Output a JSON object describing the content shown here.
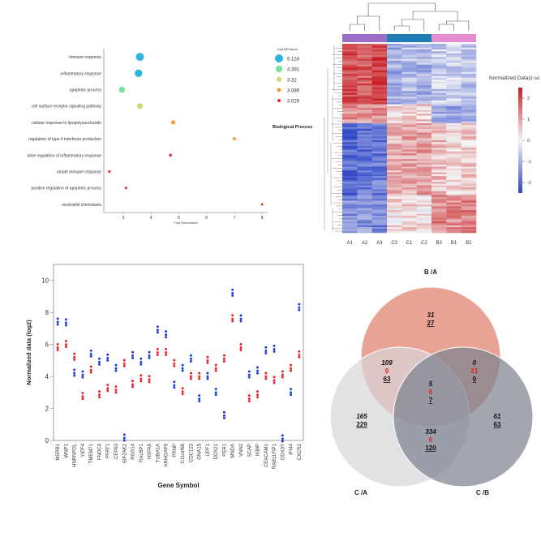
{
  "chart_data": [
    {
      "type": "scatter",
      "panel": "enrichment-bubble",
      "categories": [
        "immune response",
        "inflammatory response",
        "apoptotic process",
        "cell surface receptor signaling pathway",
        "cellular response to lipopolysaccharide",
        "regulation of type II interferon production",
        "ative regulation of inflammatory response",
        "innate immune response",
        "positive regulation of apoptotic process",
        "neutrophil chemotaxis"
      ],
      "x": [
        3.6,
        3.55,
        2.95,
        3.6,
        4.8,
        7.0,
        4.7,
        2.5,
        3.1,
        8.0
      ],
      "pvalue": [
        5.124,
        4.9,
        4.391,
        4.2,
        3.7,
        3.32,
        3.2,
        3.086,
        3.029,
        3.0
      ],
      "xlabel": "Fold Enrichment",
      "xticks": [
        "3",
        "4",
        "5",
        "6",
        "7",
        "8"
      ],
      "xlim": [
        2.3,
        8.2
      ],
      "legend_title": "-log10(Pvalue)",
      "legend": [
        "5.124",
        "4.391",
        "3.32",
        "3.086",
        "3.029"
      ],
      "legend_colors": [
        "#2bb5e0",
        "#7ddc9f",
        "#c7dc6e",
        "#f0a03c",
        "#e8302c"
      ],
      "side_label": "Biological Process"
    },
    {
      "type": "heatmap",
      "panel": "clustered-heatmap",
      "columns": [
        "A1",
        "A2",
        "A3",
        "C3",
        "C1",
        "C2",
        "B3",
        "B1",
        "B2"
      ],
      "group_colors": [
        "#9b6fc8",
        "#1f7cb4",
        "#e58bcf"
      ],
      "colorbar_title": "Normalized Data(z-sc",
      "colorbar_ticks": [
        "2",
        "1",
        "0",
        "-1",
        "-2"
      ],
      "clim": [
        -2.5,
        2.5
      ],
      "blocks": [
        {
          "rows": 32,
          "pattern": [
            2.0,
            1.8,
            2.1,
            -1.0,
            -0.8,
            -0.9,
            -0.6,
            -0.5,
            -0.7
          ]
        },
        {
          "rows": 10,
          "pattern": [
            1.2,
            1.0,
            1.3,
            0.4,
            0.6,
            0.5,
            -1.0,
            -1.1,
            -0.9
          ]
        },
        {
          "rows": 38,
          "pattern": [
            -2.0,
            -1.8,
            -1.7,
            0.8,
            0.9,
            1.0,
            0.6,
            0.4,
            0.5
          ]
        },
        {
          "rows": 20,
          "pattern": [
            -1.5,
            -1.3,
            -1.6,
            0.3,
            0.4,
            0.2,
            1.3,
            1.2,
            1.4
          ]
        }
      ]
    },
    {
      "type": "scatter",
      "panel": "gene-dot-plot",
      "ylabel": "Normalized data (log2)",
      "xlabel": "Gene Symbol",
      "ylim": [
        0,
        11
      ],
      "yticks": [
        0,
        2,
        4,
        6,
        8,
        10
      ],
      "categories": [
        "MSRB1",
        "WNP1",
        "HNRNPDL",
        "YIPF4",
        "TMEM71",
        "FNDC4",
        "PFAT1",
        "CEP63",
        "EIF2AK2",
        "RGS14",
        "RALBP1",
        "HSPA9",
        "TUBA1A",
        "ARHGAP9",
        "PRNP",
        "C11orf68",
        "CDC123",
        "GNA15",
        "UPF1",
        "DDX21",
        "PER1",
        "MNDA",
        "VNN2",
        "SCAP",
        "IKBIP",
        "CEACAM1",
        "RAB11FIP1",
        "DDX3Y",
        "IFI44",
        "CXCR2"
      ],
      "series": [
        {
          "color": "#1f3fd8",
          "values": [
            7.4,
            7.35,
            4.2,
            4.1,
            5.4,
            4.9,
            5.15,
            4.5,
            0.15,
            5.3,
            4.9,
            5.3,
            6.9,
            6.6,
            3.45,
            4.5,
            5.1,
            2.6,
            4.0,
            3.0,
            1.55,
            9.2,
            7.6,
            4.1,
            4.35,
            5.6,
            5.7,
            0.1,
            3.0,
            8.3
          ]
        },
        {
          "color": "#e8252a",
          "values": [
            5.8,
            6.0,
            5.2,
            2.75,
            4.4,
            2.85,
            3.25,
            3.15,
            4.8,
            3.5,
            3.85,
            3.8,
            5.5,
            5.5,
            4.8,
            3.05,
            4.0,
            4.0,
            5.0,
            4.5,
            5.1,
            7.6,
            5.8,
            2.6,
            2.85,
            4.0,
            3.75,
            4.1,
            4.5,
            5.35
          ]
        }
      ]
    },
    {
      "type": "venn",
      "panel": "venn-three",
      "sets": [
        {
          "label": "B /A",
          "color": "#e17f6c"
        },
        {
          "label": "C /A",
          "color": "#d7d6da"
        },
        {
          "label": "C /B",
          "color": "#7d8490"
        }
      ],
      "regions": [
        {
          "name": "B only",
          "v": [
            "31",
            "27"
          ]
        },
        {
          "name": "B and CA",
          "v": [
            "109",
            "0",
            "63"
          ]
        },
        {
          "name": "B and CB",
          "v": [
            "0",
            "21",
            "0"
          ]
        },
        {
          "name": "all three",
          "v": [
            "5",
            "6",
            "7"
          ]
        },
        {
          "name": "CA only",
          "v": [
            "165",
            "229"
          ]
        },
        {
          "name": "CA and CB",
          "v": [
            "334",
            "0",
            "120"
          ]
        },
        {
          "name": "CB only",
          "v": [
            "61",
            "63"
          ]
        }
      ]
    }
  ]
}
